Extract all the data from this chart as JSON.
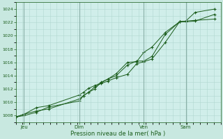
{
  "xlabel": "Pression niveau de la mer( hPa )",
  "ylim": [
    1007,
    1025
  ],
  "xlim": [
    0,
    1.0
  ],
  "yticks": [
    1008,
    1010,
    1012,
    1014,
    1016,
    1018,
    1020,
    1022,
    1024
  ],
  "background_color": "#c8e8e0",
  "plot_bg_color": "#d0eeea",
  "grid_color": "#b0d8d0",
  "major_vline_color": "#8ab0a8",
  "line_color": "#1a5c1a",
  "marker_color": "#1a5c1a",
  "day_labels": [
    "Jeu",
    "Dim",
    "Ven",
    "Sam"
  ],
  "day_positions": [
    0.04,
    0.31,
    0.625,
    0.83
  ],
  "num_minor_vcols": 30,
  "series1_x": [
    0.0,
    0.04,
    0.1,
    0.16,
    0.31,
    0.33,
    0.355,
    0.385,
    0.415,
    0.45,
    0.49,
    0.545,
    0.59,
    0.625,
    0.665,
    0.73,
    0.8,
    0.83,
    0.875,
    0.97
  ],
  "series1_y": [
    1007.8,
    1008.2,
    1008.7,
    1009.0,
    1010.5,
    1011.0,
    1011.5,
    1012.3,
    1012.8,
    1013.2,
    1013.7,
    1014.2,
    1015.8,
    1016.1,
    1016.5,
    1019.0,
    1022.1,
    1022.1,
    1022.2,
    1023.2
  ],
  "series2_x": [
    0.0,
    0.04,
    0.1,
    0.16,
    0.31,
    0.33,
    0.355,
    0.385,
    0.415,
    0.45,
    0.49,
    0.545,
    0.59,
    0.625,
    0.665,
    0.73,
    0.8,
    0.83,
    0.875,
    0.97
  ],
  "series2_y": [
    1007.8,
    1008.2,
    1009.2,
    1009.5,
    1011.1,
    1011.5,
    1012.1,
    1012.5,
    1012.9,
    1013.5,
    1014.0,
    1015.6,
    1016.2,
    1016.2,
    1016.9,
    1020.2,
    1022.1,
    1022.2,
    1022.3,
    1022.5
  ],
  "series3_x": [
    0.0,
    0.04,
    0.1,
    0.16,
    0.31,
    0.33,
    0.355,
    0.385,
    0.415,
    0.45,
    0.49,
    0.545,
    0.59,
    0.625,
    0.665,
    0.73,
    0.8,
    0.83,
    0.875,
    0.97
  ],
  "series3_y": [
    1007.8,
    1008.0,
    1008.5,
    1009.3,
    1010.2,
    1011.0,
    1011.5,
    1012.0,
    1013.0,
    1013.5,
    1014.3,
    1016.0,
    1016.1,
    1017.5,
    1018.3,
    1020.5,
    1022.1,
    1022.2,
    1023.5,
    1024.0
  ]
}
